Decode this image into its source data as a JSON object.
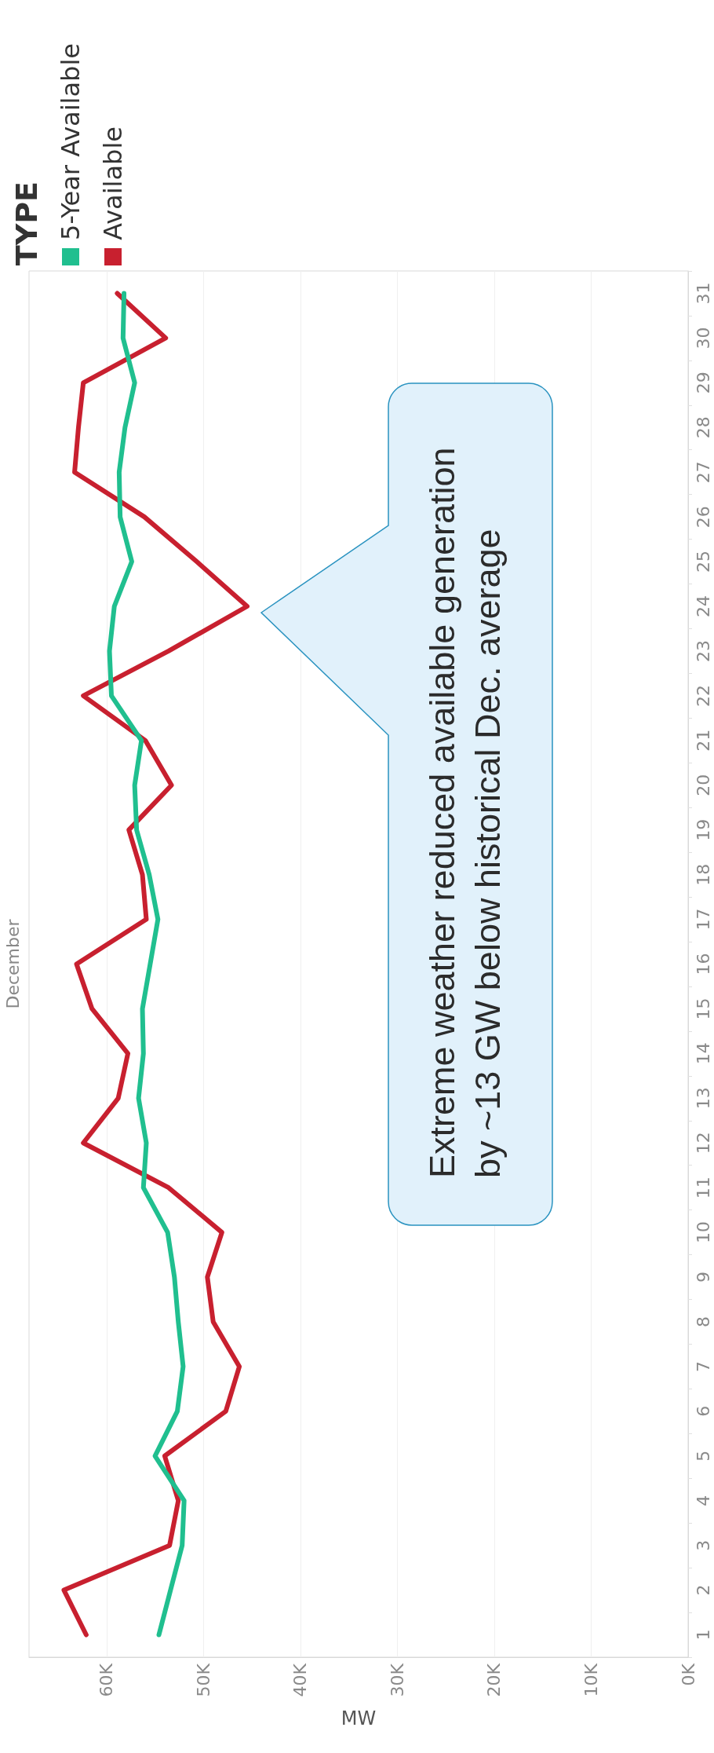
{
  "chart_data": {
    "type": "line",
    "orientation": "horizontal",
    "xlabel": "MW",
    "ylabel": "December",
    "legend_title": "TYPE",
    "legend": "top left",
    "grid": "x",
    "marker": "none",
    "categories": [
      "31",
      "30",
      "29",
      "28",
      "27",
      "26",
      "25",
      "24",
      "23",
      "22",
      "21",
      "20",
      "19",
      "18",
      "17",
      "16",
      "15",
      "14",
      "13",
      "12",
      "11",
      "10",
      "9",
      "8",
      "7",
      "6",
      "5",
      "4",
      "3",
      "2",
      "1"
    ],
    "series": [
      {
        "name": "5-Year Available",
        "color": "#20bf8f",
        "values": [
          58200,
          58300,
          57100,
          58100,
          58700,
          58600,
          57400,
          59200,
          59700,
          59500,
          56400,
          57100,
          56900,
          55600,
          54700,
          55500,
          56300,
          56200,
          56700,
          55900,
          56200,
          53700,
          53000,
          52600,
          52100,
          52700,
          55000,
          52000,
          52200,
          53400,
          54600
        ]
      },
      {
        "name": "Available",
        "color": "#c8202f",
        "values": [
          58900,
          53900,
          62400,
          62900,
          63300,
          56100,
          50700,
          45500,
          53600,
          62400,
          56000,
          53300,
          57700,
          56300,
          55900,
          63100,
          61500,
          57800,
          58800,
          62400,
          53600,
          48100,
          49600,
          49000,
          46300,
          47700,
          54000,
          52600,
          53500,
          64400,
          62100
        ]
      }
    ],
    "xlim": [
      68000,
      0
    ],
    "xticks": [
      {
        "value": 60000,
        "label": "60K"
      },
      {
        "value": 50000,
        "label": "50K"
      },
      {
        "value": 40000,
        "label": "40K"
      },
      {
        "value": 30000,
        "label": "30K"
      },
      {
        "value": 20000,
        "label": "20K"
      },
      {
        "value": 10000,
        "label": "10K"
      },
      {
        "value": 0,
        "label": "0K"
      }
    ],
    "annotations": [
      "Extreme weather reduced available generation by ~13 GW below historical Dec. average"
    ]
  }
}
